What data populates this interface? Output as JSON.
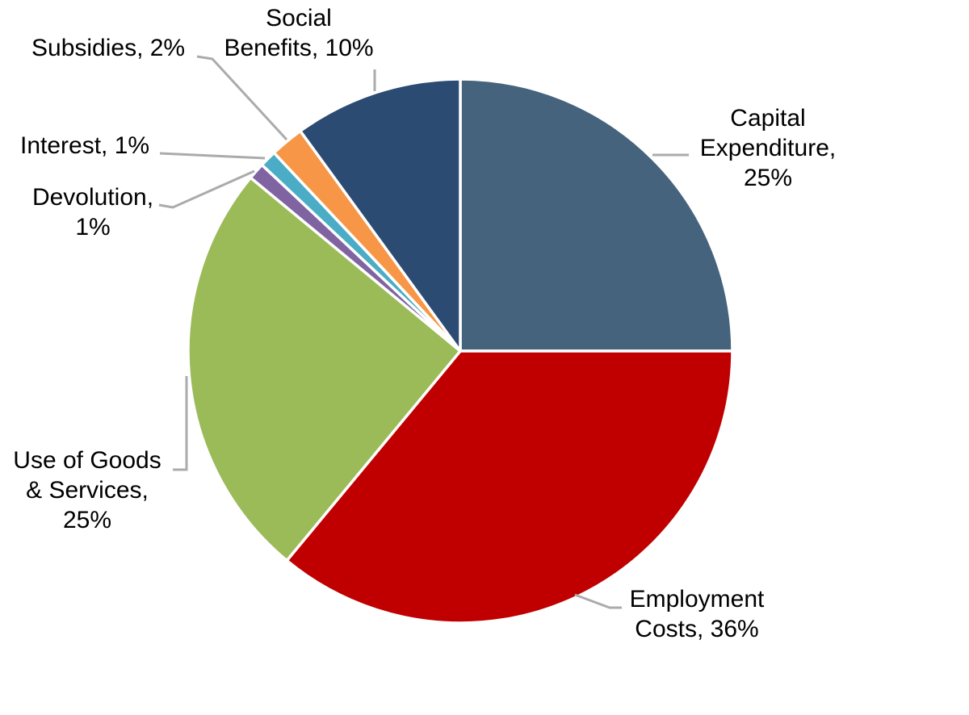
{
  "chart_data": {
    "type": "pie",
    "unit": "percent",
    "direction": "clockwise",
    "start_angle_deg": 0,
    "legend": "none",
    "background_color": "#FFFFFF",
    "slice_border_color": "#FFFFFF",
    "leader_line_color": "#ABABAB",
    "label_text_color": "#000000",
    "slices": [
      {
        "id": "capital",
        "label": "Capital Expenditure",
        "value_pct": 25,
        "color": "#46637E",
        "label_display": "Capital\nExpenditure,\n25%"
      },
      {
        "id": "employment",
        "label": "Employment Costs",
        "value_pct": 36,
        "color": "#C00000",
        "label_display": "Employment\nCosts, 36%"
      },
      {
        "id": "goods",
        "label": "Use of Goods & Services",
        "value_pct": 25,
        "color": "#9BBB59",
        "label_display": "Use of Goods\n& Services,\n25%"
      },
      {
        "id": "devolution",
        "label": "Devolution",
        "value_pct": 1,
        "color": "#8064A2",
        "label_display": "Devolution,\n1%"
      },
      {
        "id": "interest",
        "label": "Interest",
        "value_pct": 1,
        "color": "#4BACC6",
        "label_display": "Interest, 1%"
      },
      {
        "id": "subsidies",
        "label": "Subsidies",
        "value_pct": 2,
        "color": "#F79646",
        "label_display": "Subsidies, 2%"
      },
      {
        "id": "social",
        "label": "Social Benefits",
        "value_pct": 10,
        "color": "#2C4B73",
        "label_display": "Social\nBenefits, 10%"
      }
    ]
  }
}
